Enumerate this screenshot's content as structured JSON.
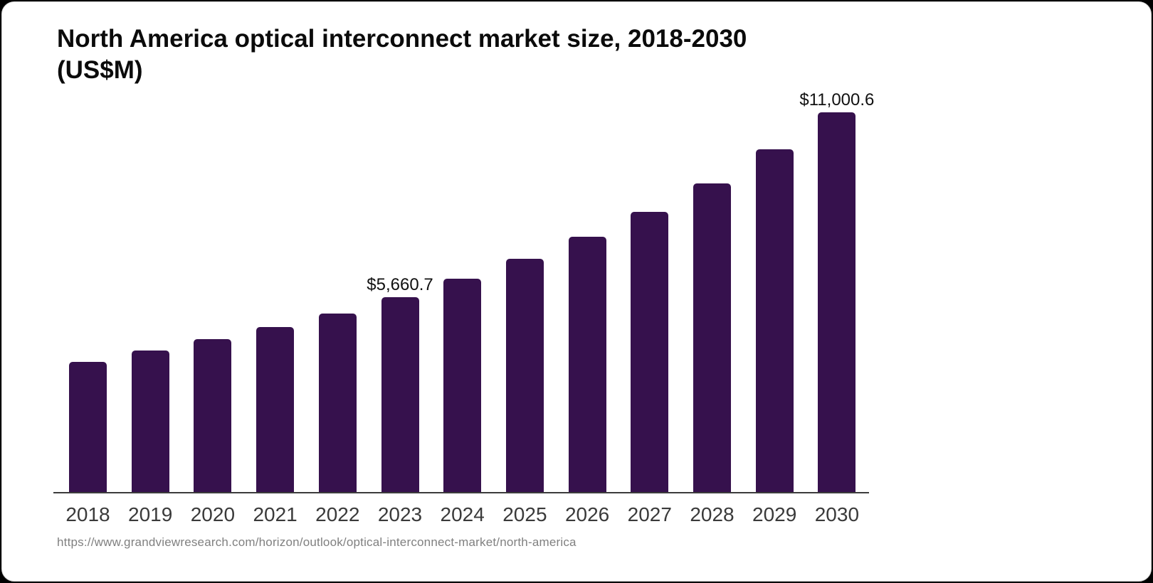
{
  "header": {
    "title_line1": "North America optical interconnect market size, 2018-2030",
    "title_line2": "(US$M)"
  },
  "footer": {
    "source_url": "https://www.grandviewresearch.com/horizon/outlook/optical-interconnect-market/north-america"
  },
  "colors": {
    "bar": "#36114d",
    "axis": "#3c3c3c",
    "title_text": "#0b0b0b",
    "tick_text": "#3a3a3a",
    "value_label_text": "#111111",
    "source_text": "#808080",
    "card_background": "#ffffff",
    "page_background": "#000000"
  },
  "chart_data": {
    "type": "bar",
    "title": "North America optical interconnect market size, 2018-2030 (US$M)",
    "xlabel": "",
    "ylabel": "US$M",
    "categories": [
      "2018",
      "2019",
      "2020",
      "2021",
      "2022",
      "2023",
      "2024",
      "2025",
      "2026",
      "2027",
      "2028",
      "2029",
      "2030"
    ],
    "values": [
      3780,
      4110,
      4440,
      4790,
      5180,
      5660.7,
      6190,
      6760,
      7400,
      8120,
      8940,
      9930,
      11000.6
    ],
    "point_labels": {
      "2023": "$5,660.7",
      "2030": "$11,000.6"
    },
    "ylim": [
      0,
      11600
    ],
    "grid": false,
    "legend": false,
    "bar_color": "#36114d"
  }
}
